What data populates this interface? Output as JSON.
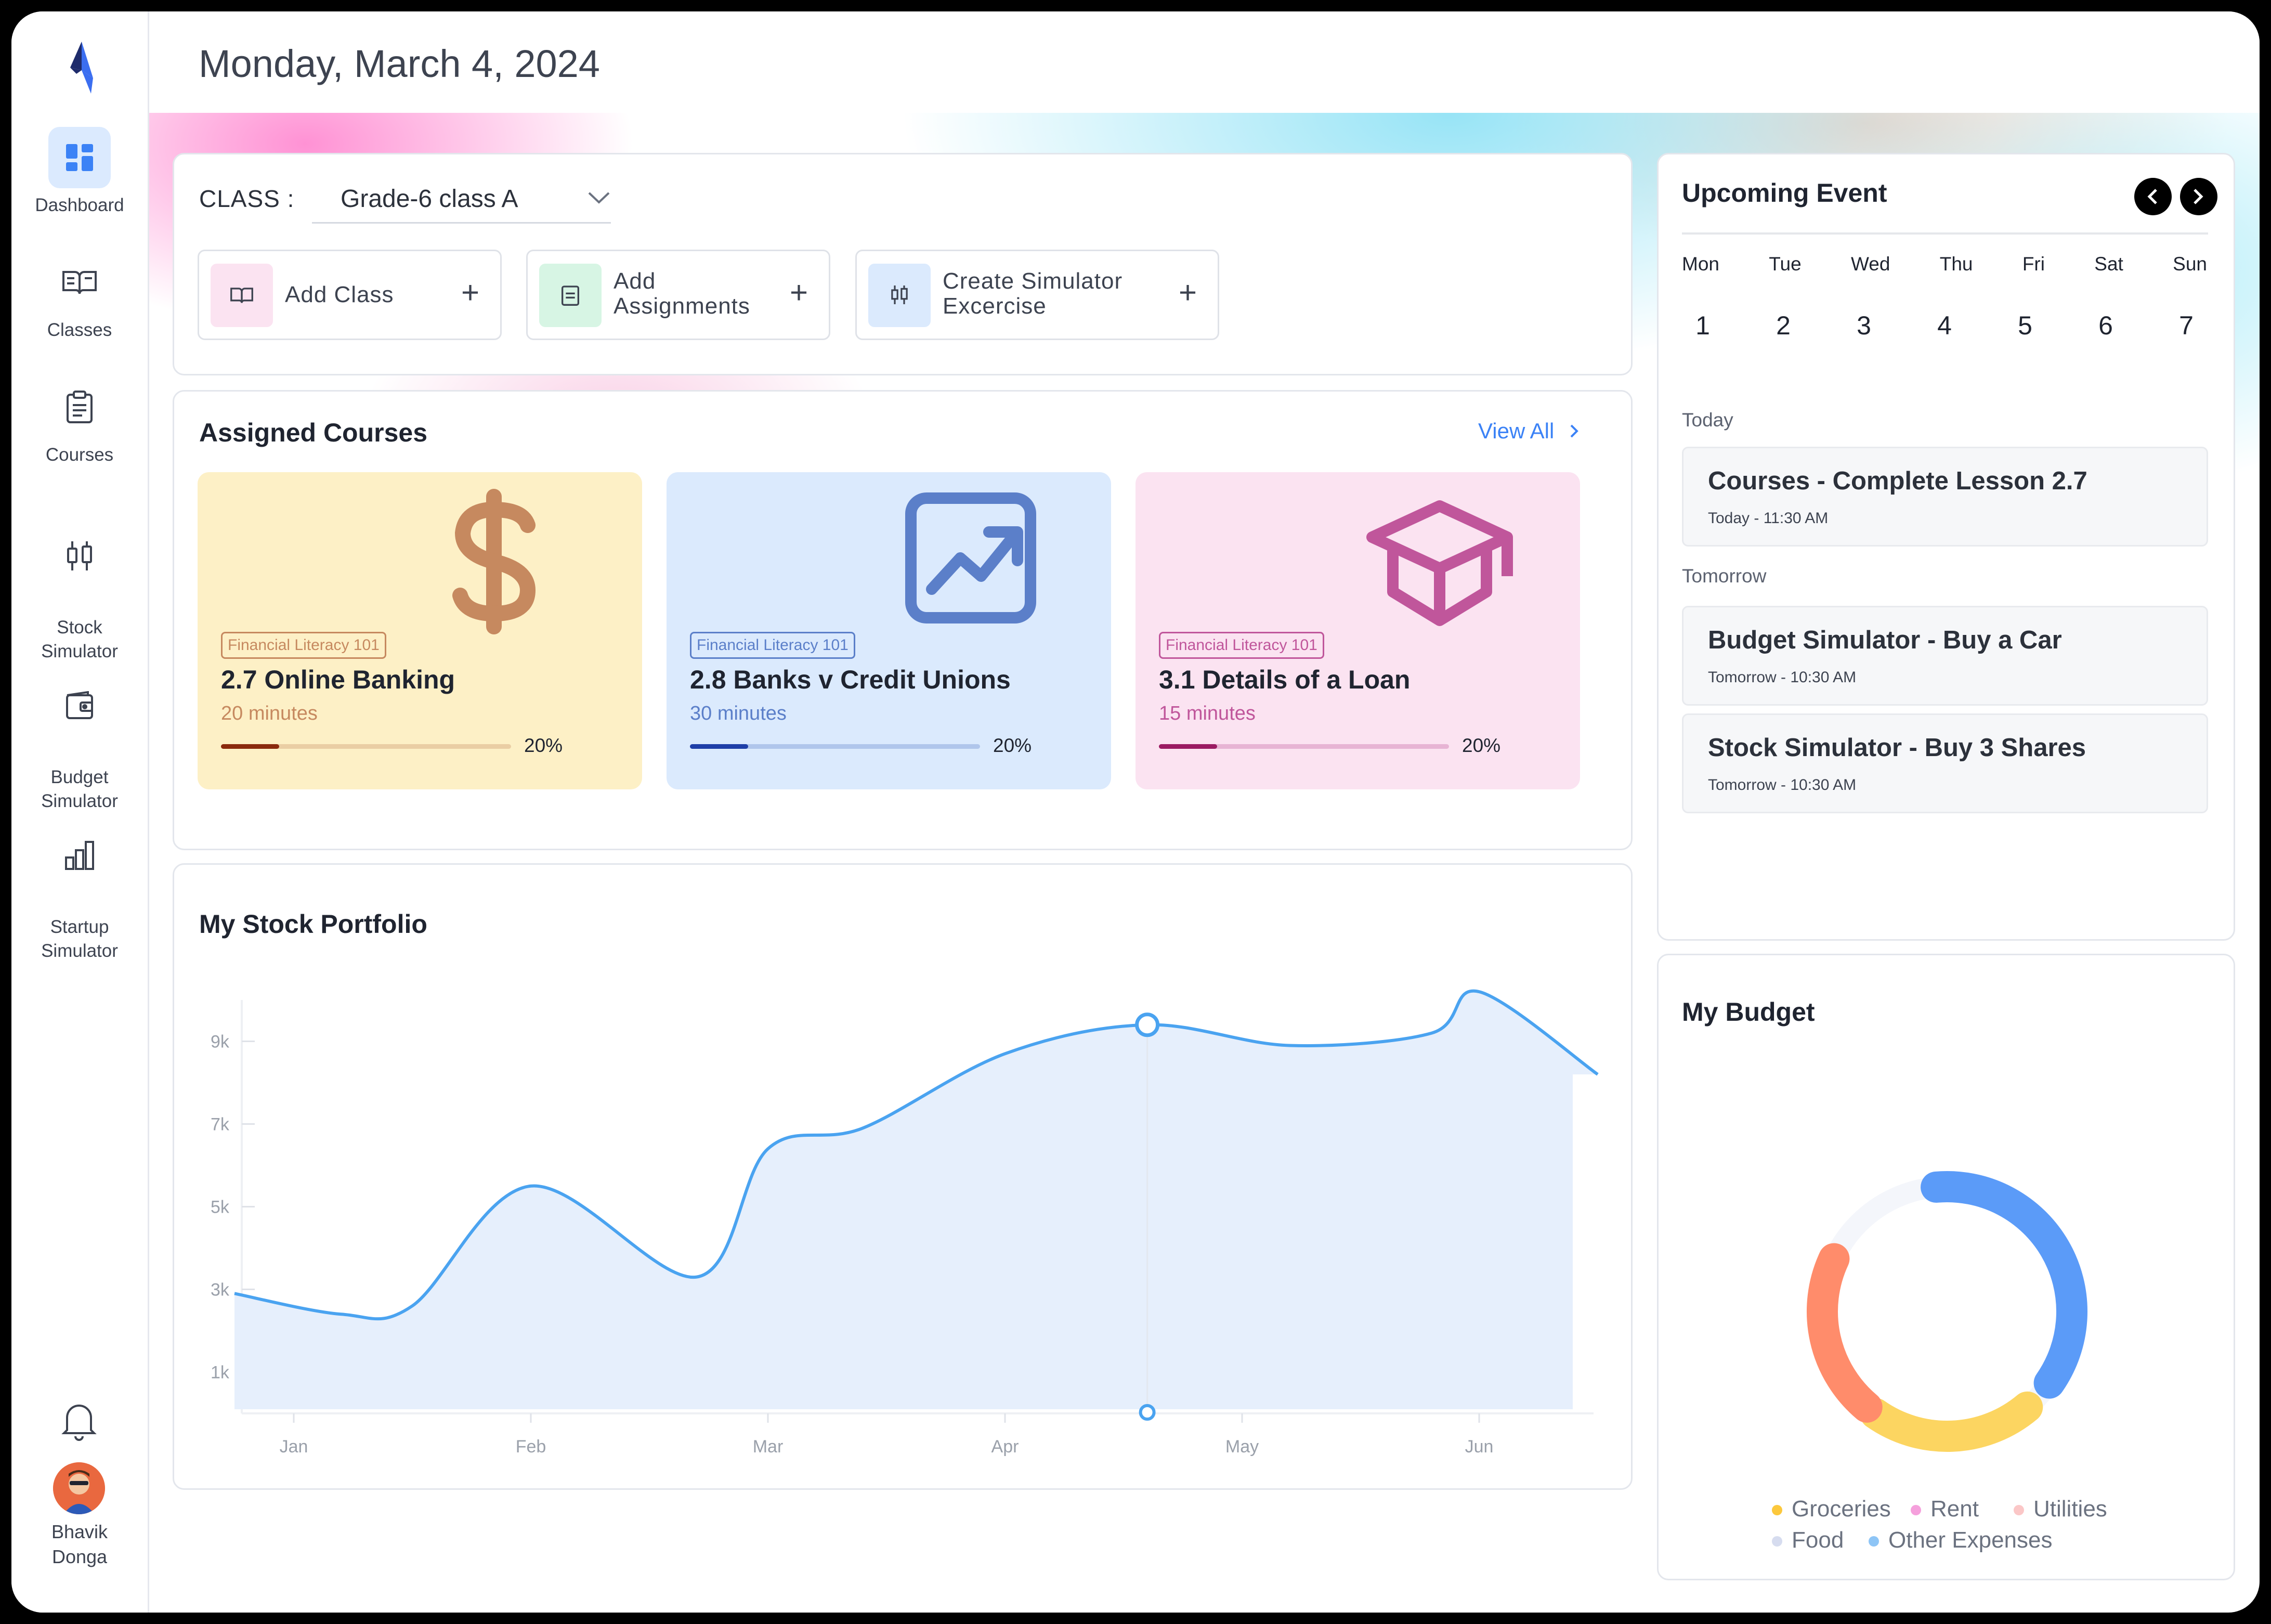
{
  "header": {
    "date": "Monday, March 4, 2024"
  },
  "sidebar": {
    "items": [
      {
        "label": "Dashboard",
        "icon": "dashboard-icon",
        "active": true
      },
      {
        "label": "Classes",
        "icon": "book-icon"
      },
      {
        "label": "Courses",
        "icon": "clipboard-icon"
      },
      {
        "label": "Stock\nSimulator",
        "icon": "stock-icon"
      },
      {
        "label": "Budget\nSimulator",
        "icon": "wallet-icon"
      },
      {
        "label": "Startup\nSimulator",
        "icon": "bar-chart-icon"
      }
    ],
    "user": {
      "name": "Bhavik\nDonga"
    }
  },
  "class_card": {
    "label": "CLASS :",
    "selected": "Grade-6 class A",
    "actions": [
      {
        "label": "Add Class",
        "icon": "book-icon"
      },
      {
        "label": "Add\nAssignments",
        "icon": "clipboard-icon"
      },
      {
        "label": "Create Simulator\nExcercise",
        "icon": "sliders-icon"
      }
    ],
    "plus": "+"
  },
  "courses": {
    "title": "Assigned Courses",
    "view_all": "View All",
    "items": [
      {
        "tag": "Financial Literacy 101",
        "title": "2.7 Online Banking",
        "duration": "20 minutes",
        "progress": 0.2,
        "percent": "20%",
        "icon": "dollar-icon",
        "bg": "#fdf0c6",
        "accent": "#c6895f",
        "bar": "#8b2a0d"
      },
      {
        "tag": "Financial Literacy 101",
        "title": "2.8 Banks v Credit Unions",
        "duration": "30 minutes",
        "progress": 0.2,
        "percent": "20%",
        "icon": "trend-chart-icon",
        "bg": "#dbeafd",
        "accent": "#5b7fc9",
        "bar": "#1e3fa8"
      },
      {
        "tag": "Financial Literacy 101",
        "title": "3.1 Details of a Loan",
        "duration": "15 minutes",
        "progress": 0.2,
        "percent": "20%",
        "icon": "graduation-cap-icon",
        "bg": "#fbe3f1",
        "accent": "#c0569b",
        "bar": "#9b1b63"
      }
    ]
  },
  "portfolio": {
    "title": "My Stock Portfolio"
  },
  "chart_data": {
    "type": "area",
    "title": "My Stock Portfolio",
    "x": [
      "Jan",
      "Feb",
      "Mar",
      "Apr",
      "May",
      "Jun"
    ],
    "y_ticks": [
      "1k",
      "3k",
      "5k",
      "7k",
      "9k"
    ],
    "series": [
      {
        "points": [
          {
            "x": 0.75,
            "y": 2900
          },
          {
            "x": 1.2,
            "y": 2400
          },
          {
            "x": 1.5,
            "y": 2600
          },
          {
            "x": 2.0,
            "y": 5500
          },
          {
            "x": 2.7,
            "y": 3300
          },
          {
            "x": 3.0,
            "y": 6400
          },
          {
            "x": 3.4,
            "y": 6900
          },
          {
            "x": 4.0,
            "y": 8700
          },
          {
            "x": 4.6,
            "y": 9400
          },
          {
            "x": 5.2,
            "y": 8900
          },
          {
            "x": 5.8,
            "y": 9200
          },
          {
            "x": 6.0,
            "y": 10200
          },
          {
            "x": 6.5,
            "y": 8200
          }
        ]
      }
    ],
    "highlight": {
      "x": 4.6,
      "y": 9400
    },
    "ylim": [
      0,
      10000
    ],
    "grid": false
  },
  "events": {
    "title": "Upcoming Event",
    "days": [
      "Mon",
      "Tue",
      "Wed",
      "Thu",
      "Fri",
      "Sat",
      "Sun"
    ],
    "dates": [
      "1",
      "2",
      "3",
      "4",
      "5",
      "6",
      "7"
    ],
    "groups": [
      {
        "label": "Today",
        "items": [
          {
            "title": "Courses - Complete Lesson 2.7",
            "meta": "Today - 11:30 AM"
          }
        ]
      },
      {
        "label": "Tomorrow",
        "items": [
          {
            "title": "Budget Simulator - Buy a Car",
            "meta": "Tomorrow - 10:30 AM"
          },
          {
            "title": "Stock Simulator - Buy 3 Shares",
            "meta": "Tomorrow - 10:30 AM"
          }
        ]
      }
    ]
  },
  "budget": {
    "title": "My Budget",
    "segments": [
      {
        "name": "Other Expenses",
        "share": 0.42,
        "color": "#5b9bf8"
      },
      {
        "name": "Groceries",
        "share": 0.22,
        "color": "#fcd561"
      },
      {
        "name": "Food",
        "share": 0.2,
        "color": "#ff8c6b"
      }
    ],
    "legend": [
      {
        "label": "Groceries",
        "color": "#fcc83c"
      },
      {
        "label": "Rent",
        "color": "#f5a0dc"
      },
      {
        "label": "Utilities",
        "color": "#fbc7c7"
      },
      {
        "label": "Food",
        "color": "#d6dcef"
      },
      {
        "label": "Other Expenses",
        "color": "#8ec5f6"
      }
    ]
  }
}
